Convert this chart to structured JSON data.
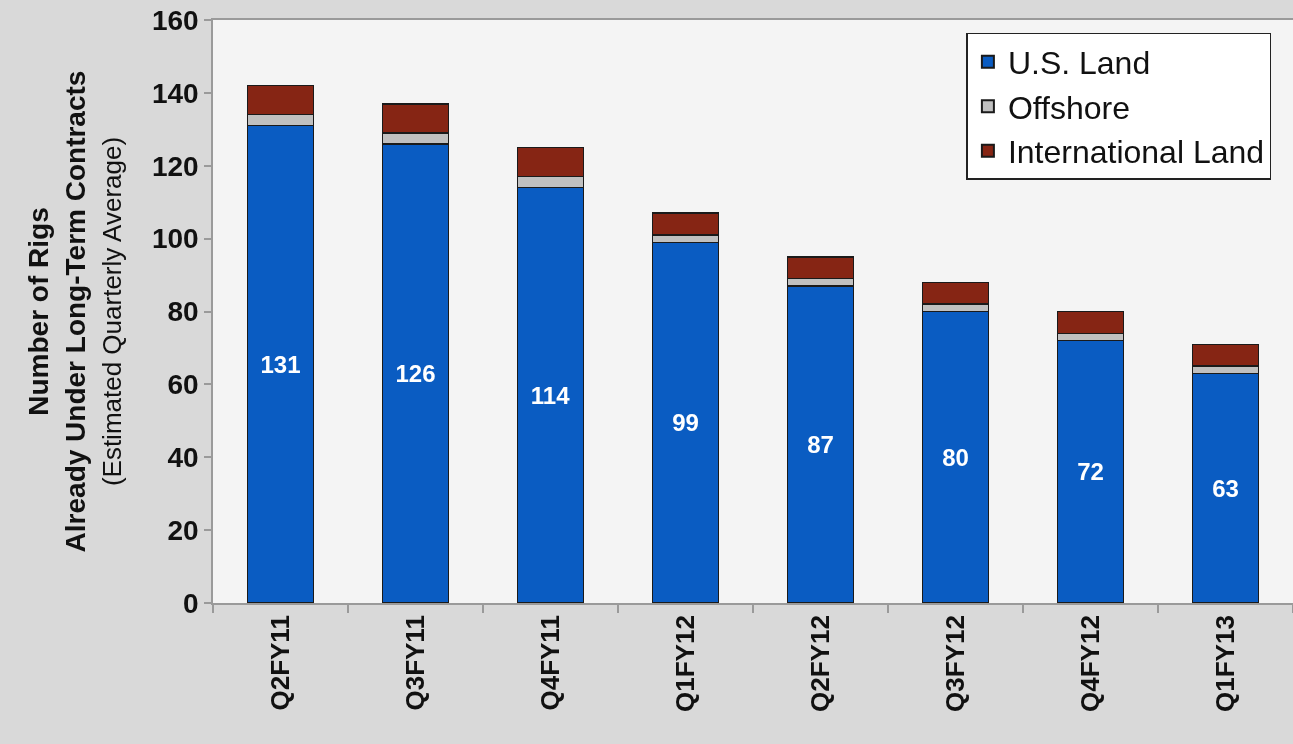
{
  "chart_data": {
    "type": "bar",
    "stacked": true,
    "ylabel": "Number of Rigs\nAlready Under Long-Term Contracts\n(Estimated Quarterly Average)",
    "categories": [
      "Q2FY11",
      "Q3FY11",
      "Q4FY11",
      "Q1FY12",
      "Q2FY12",
      "Q3FY12",
      "Q4FY12",
      "Q1FY13"
    ],
    "series": [
      {
        "name": "U.S. Land",
        "color": "#0a5cc2",
        "values": [
          131,
          126,
          114,
          99,
          87,
          80,
          72,
          63
        ],
        "value_labels": [
          "131",
          "126",
          "114",
          "99",
          "87",
          "80",
          "72",
          "63"
        ]
      },
      {
        "name": "Offshore",
        "color": "#c0c0c0",
        "values": [
          3,
          3,
          3,
          2,
          2,
          2,
          2,
          2
        ]
      },
      {
        "name": "International Land",
        "color": "#862514",
        "values": [
          8,
          8,
          8,
          6,
          6,
          6,
          6,
          6
        ]
      }
    ],
    "ylim": [
      0,
      160
    ],
    "yticks": [
      0,
      20,
      40,
      60,
      80,
      100,
      120,
      140,
      160
    ],
    "grid": false,
    "legend": "top right"
  }
}
